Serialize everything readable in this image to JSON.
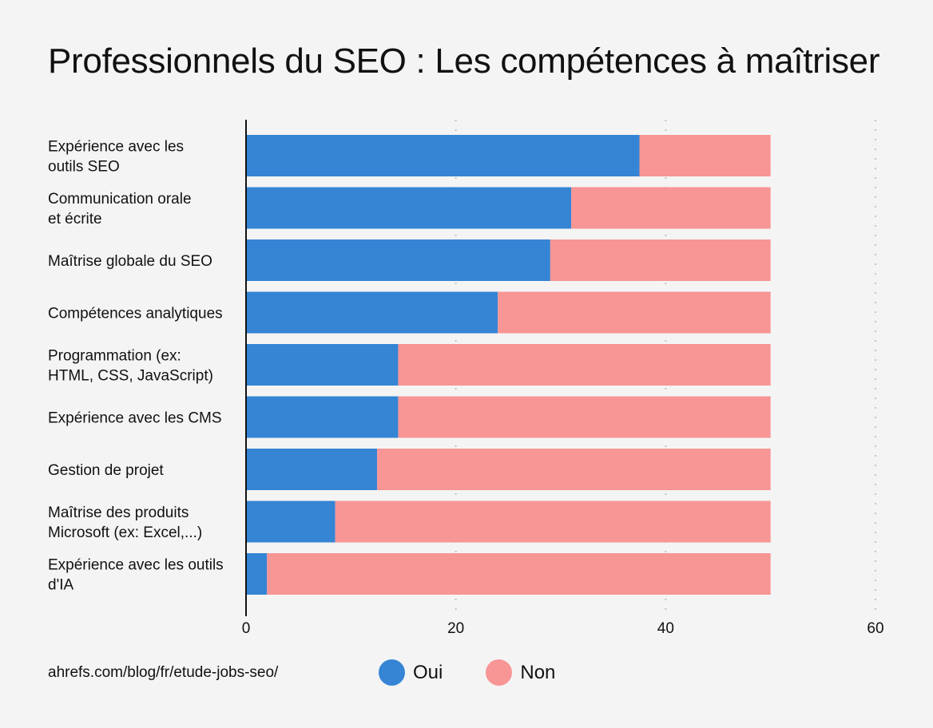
{
  "title": "Professionnels du SEO : Les compétences à maîtriser",
  "source": "ahrefs.com/blog/fr/etude-jobs-seo/",
  "colors": {
    "oui": "#3585d4",
    "non": "#f89595",
    "background": "#f4f4f4"
  },
  "chart_data": {
    "type": "bar",
    "orientation": "horizontal",
    "stacked": true,
    "title": "Professionnels du SEO : Les compétences à maîtriser",
    "xlabel": "",
    "ylabel": "",
    "xlim": [
      0,
      60
    ],
    "xticks": [
      "0",
      "20",
      "40",
      "60"
    ],
    "xtick_values": [
      0,
      20,
      40,
      60
    ],
    "grid": "vertical dotted",
    "legend_placement": "bottom",
    "categories": [
      [
        "Expérience avec les",
        "outils SEO"
      ],
      [
        "Communication orale",
        "et écrite"
      ],
      [
        "Maîtrise globale du SEO"
      ],
      [
        "Compétences analytiques"
      ],
      [
        "Programmation (ex:",
        "HTML, CSS, JavaScript)"
      ],
      [
        "Expérience avec les CMS"
      ],
      [
        "Gestion de projet"
      ],
      [
        "Maîtrise des produits",
        "Microsoft (ex: Excel,...)"
      ],
      [
        "Expérience avec les outils",
        "d'IA"
      ]
    ],
    "series": [
      {
        "name": "Oui",
        "color": "#3585d4",
        "values": [
          37.5,
          31,
          29,
          24,
          14.5,
          14.5,
          12.5,
          8.5,
          2
        ]
      },
      {
        "name": "Non",
        "color": "#f89595",
        "values": [
          12.5,
          19,
          21,
          26,
          35.5,
          35.5,
          37.5,
          41.5,
          48
        ]
      }
    ]
  }
}
